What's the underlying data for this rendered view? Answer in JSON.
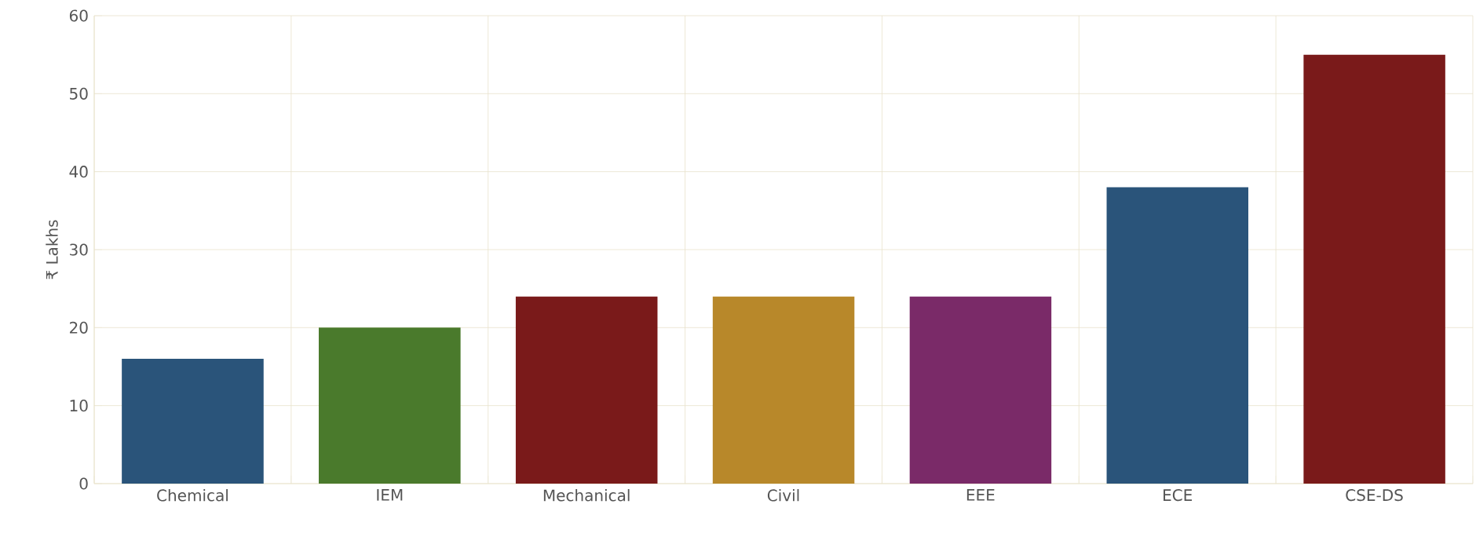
{
  "chart_data": {
    "type": "bar",
    "ylabel": "₹ Lakhs",
    "categories": [
      "Chemical",
      "IEM",
      "Mechanical",
      "Civil",
      "EEE",
      "ECE",
      "CSE-DS"
    ],
    "values": [
      16,
      20,
      24,
      24,
      24,
      38,
      55
    ],
    "colors": [
      "#2a547a",
      "#4a7a2c",
      "#7a1a1a",
      "#b8882a",
      "#7a2a68",
      "#2a547a",
      "#7a1a1a"
    ],
    "ylim": [
      0,
      60
    ],
    "yticks": [
      0,
      10,
      20,
      30,
      40,
      50,
      60
    ],
    "grid": true
  }
}
